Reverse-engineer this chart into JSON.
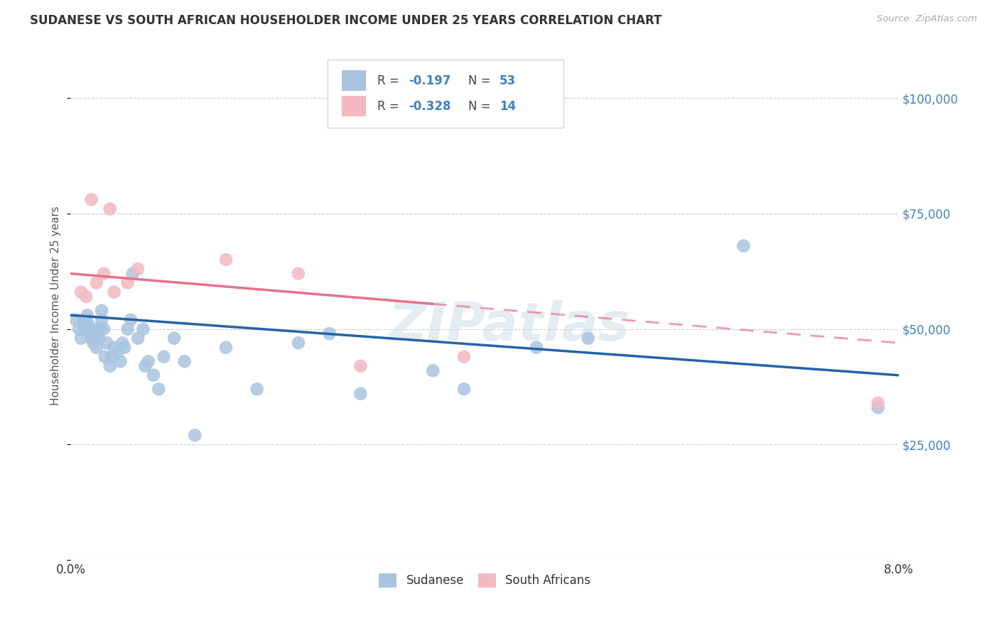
{
  "title": "SUDANESE VS SOUTH AFRICAN HOUSEHOLDER INCOME UNDER 25 YEARS CORRELATION CHART",
  "source": "Source: ZipAtlas.com",
  "ylabel": "Householder Income Under 25 years",
  "xlim": [
    0.0,
    8.0
  ],
  "ylim": [
    0,
    110000
  ],
  "yticks": [
    0,
    25000,
    50000,
    75000,
    100000
  ],
  "ytick_labels": [
    "",
    "$25,000",
    "$50,000",
    "$75,000",
    "$100,000"
  ],
  "sudanese_color": "#a8c4e0",
  "safrican_color": "#f4b8c1",
  "trend_sudanese_color": "#2563a8",
  "trend_safrican_color": "#e8708a",
  "watermark": "ZIPatlas",
  "ytick_color": "#4080c0",
  "title_color": "#333333",
  "sudanese_x": [
    0.05,
    0.08,
    0.1,
    0.12,
    0.13,
    0.14,
    0.15,
    0.16,
    0.17,
    0.18,
    0.2,
    0.22,
    0.22,
    0.23,
    0.25,
    0.27,
    0.28,
    0.3,
    0.3,
    0.32,
    0.33,
    0.35,
    0.38,
    0.4,
    0.42,
    0.45,
    0.48,
    0.5,
    0.52,
    0.55,
    0.58,
    0.6,
    0.65,
    0.7,
    0.72,
    0.75,
    0.8,
    0.85,
    0.9,
    1.0,
    1.1,
    1.2,
    1.5,
    1.8,
    2.2,
    2.5,
    2.8,
    3.5,
    3.8,
    4.5,
    5.0,
    6.5,
    7.8
  ],
  "sudanese_y": [
    52000,
    50000,
    48000,
    51000,
    50000,
    52000,
    52000,
    53000,
    51000,
    50000,
    48000,
    50000,
    47000,
    48000,
    46000,
    48000,
    50000,
    52000,
    54000,
    50000,
    44000,
    47000,
    42000,
    44000,
    46000,
    45000,
    43000,
    47000,
    46000,
    50000,
    52000,
    62000,
    48000,
    50000,
    42000,
    43000,
    40000,
    37000,
    44000,
    48000,
    43000,
    27000,
    46000,
    37000,
    47000,
    49000,
    36000,
    41000,
    37000,
    46000,
    48000,
    68000,
    33000
  ],
  "safrican_x": [
    0.1,
    0.15,
    0.2,
    0.25,
    0.32,
    0.38,
    0.42,
    0.55,
    0.65,
    1.5,
    2.2,
    2.8,
    3.8,
    7.8
  ],
  "safrican_y": [
    58000,
    57000,
    78000,
    60000,
    62000,
    76000,
    58000,
    60000,
    63000,
    65000,
    62000,
    42000,
    44000,
    34000
  ]
}
